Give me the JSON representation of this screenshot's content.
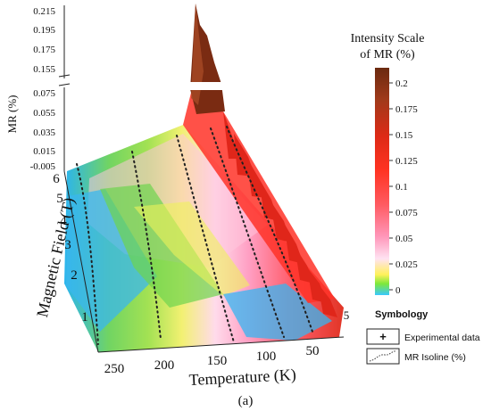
{
  "chart_data": {
    "type": "surface-3d",
    "zlabel": "MR (%)",
    "zticks_upper": [
      "0.215",
      "0.195",
      "0.175",
      "0.155"
    ],
    "zticks_lower": [
      "0.075",
      "0.055",
      "0.035",
      "0.015",
      "-0.005"
    ],
    "ylabel": "Magnetic Field (T)",
    "yticks": [
      "6",
      "5",
      "4",
      "3",
      "2",
      "1"
    ],
    "xlabel": "Temperature (K)",
    "xticks": [
      "250",
      "200",
      "150",
      "100",
      "50",
      "5"
    ],
    "colorbar": {
      "title": [
        "Intensity Scale",
        "of MR (%)"
      ],
      "ticks": [
        "0.2",
        "0.175",
        "0.15",
        "0.125",
        "0.1",
        "0.075",
        "0.05",
        "0.025",
        "0"
      ],
      "colors": [
        "#6b2a10",
        "#a03a1a",
        "#dd2a16",
        "#ff3322",
        "#ff5a60",
        "#ff95b8",
        "#ffe2f2",
        "#fff15a",
        "#7ee83a",
        "#38c8ff"
      ]
    },
    "legend": {
      "title": "Symbology",
      "items": [
        "Experimental data",
        "MR Isoline (%)"
      ]
    },
    "caption": "(a)"
  }
}
